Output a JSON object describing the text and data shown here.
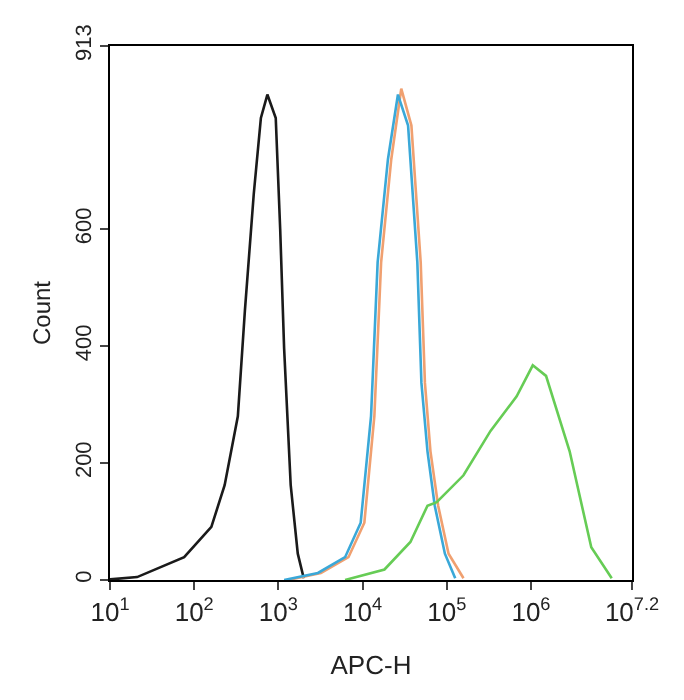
{
  "chart_data": {
    "type": "line",
    "xlabel": "APC-H",
    "ylabel": "Count",
    "log": "x",
    "marker": "none",
    "line_style": "solid",
    "xlim": [
      10,
      15848932
    ],
    "ylim": [
      0,
      913
    ],
    "xticks": [
      {
        "value": 10,
        "label": "10$^{1}$"
      },
      {
        "value": 100,
        "label": "10$^{2}$"
      },
      {
        "value": 1000,
        "label": "10$^{3}$"
      },
      {
        "value": 10000,
        "label": "10$^{4}$"
      },
      {
        "value": 100000,
        "label": "10$^{5}$"
      },
      {
        "value": 1000000,
        "label": "10$^{6}$"
      },
      {
        "value": 15848932,
        "label": "10$^{7.2}$"
      }
    ],
    "yticks": [
      0,
      200,
      400,
      600,
      913
    ],
    "series": [
      {
        "color": "#1a1a1a",
        "x": [
          10,
          21,
          76,
          160,
          230,
          330,
          400,
          510,
          620,
          740,
          930,
          1050,
          1170,
          1400,
          1700,
          2000
        ],
        "values": [
          1,
          5,
          39,
          91,
          162,
          280,
          460,
          660,
          790,
          830,
          790,
          600,
          396,
          162,
          45,
          3
        ]
      },
      {
        "color": "#f0a070",
        "x": [
          1300,
          3200,
          6800,
          10500,
          13800,
          16600,
          21900,
          28800,
          38000,
          49000,
          55000,
          64000,
          79000,
          105000,
          158000
        ],
        "values": [
          0,
          12,
          39,
          98,
          280,
          543,
          719,
          840,
          777,
          543,
          337,
          220,
          127,
          45,
          3
        ]
      },
      {
        "color": "#3aa8d8",
        "x": [
          1170,
          2950,
          6200,
          9500,
          12600,
          15100,
          20000,
          26300,
          34700,
          44700,
          50000,
          59000,
          72000,
          95000,
          126000
        ],
        "values": [
          0,
          12,
          39,
          98,
          280,
          543,
          719,
          830,
          777,
          543,
          337,
          220,
          127,
          45,
          3
        ]
      },
      {
        "color": "#66cc55",
        "x": [
          6200,
          18200,
          37000,
          59000,
          76000,
          158000,
          331000,
          676000,
          1050000,
          1510000,
          2880000,
          5200000,
          9100000
        ],
        "values": [
          0,
          18,
          65,
          127,
          133,
          179,
          255,
          314,
          367,
          349,
          220,
          56,
          3
        ]
      }
    ]
  }
}
